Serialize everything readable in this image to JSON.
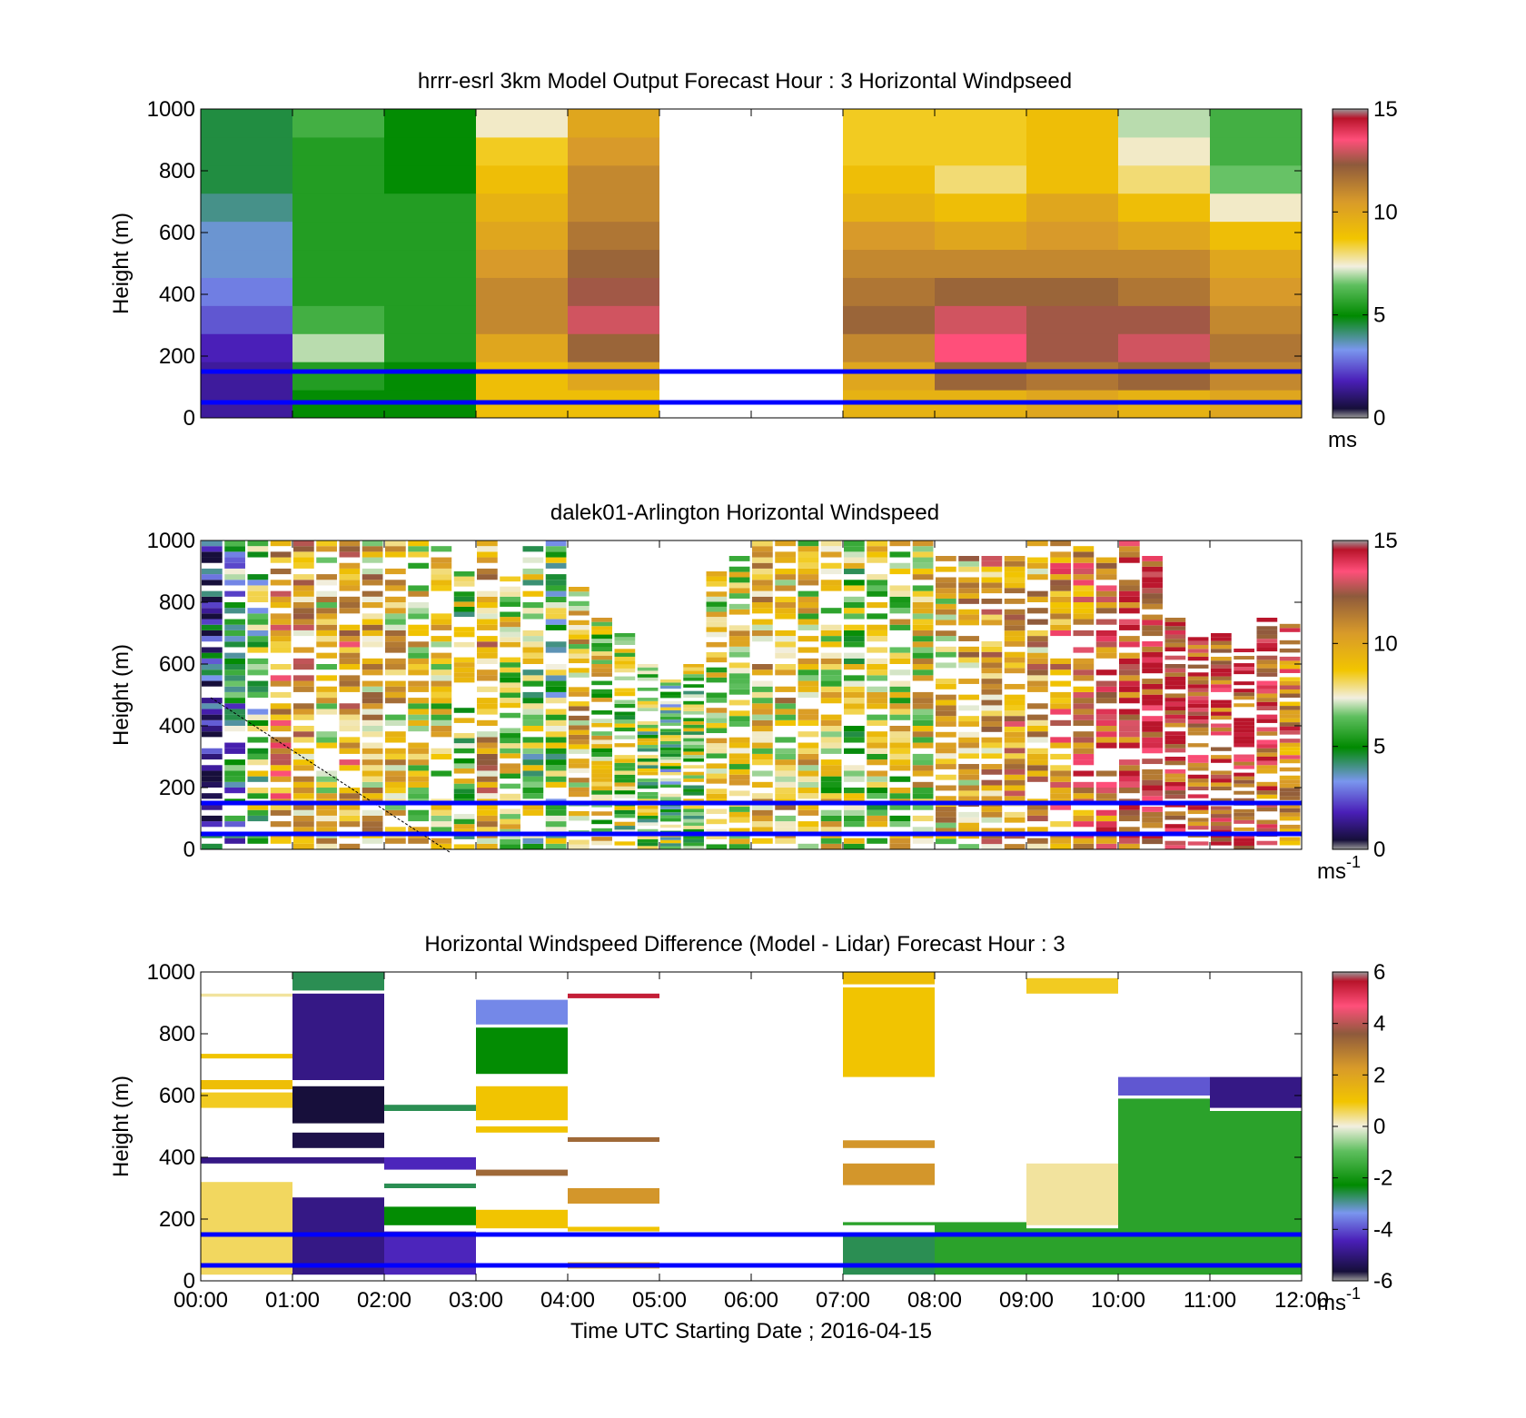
{
  "xaxis": {
    "ticks": [
      "00:00",
      "01:00",
      "02:00",
      "03:00",
      "04:00",
      "05:00",
      "06:00",
      "07:00",
      "08:00",
      "09:00",
      "10:00",
      "11:00",
      "12:00"
    ],
    "label": "Time UTC  Starting Date ; 2016-04-15"
  },
  "chart_data": [
    {
      "type": "heatmap",
      "title": "hrrr-esrl 3km Model Output   Forecast Hour : 3 Horizontal Windpseed",
      "ylabel": "Height (m)",
      "ylim": [
        0,
        1000
      ],
      "yticks": [
        "0",
        "200",
        "400",
        "600",
        "800",
        "1000"
      ],
      "xlim_hours": [
        0,
        12
      ],
      "colorbar": {
        "ticks": [
          "0",
          "5",
          "10",
          "15"
        ],
        "range": [
          0,
          15
        ],
        "unit": "ms",
        "unit_sup": ""
      },
      "reference_lines_m": [
        50,
        150
      ],
      "columns": [
        {
          "hour": 0,
          "values": [
            1.5,
            1.5,
            1.8,
            2.5,
            3.0,
            3.5,
            3.5,
            4.0,
            4.5,
            4.5,
            4.5
          ]
        },
        {
          "hour": 1,
          "values": [
            5.0,
            5.5,
            7.0,
            6.0,
            5.5,
            5.5,
            5.5,
            5.5,
            5.5,
            5.5,
            6.0
          ]
        },
        {
          "hour": 2,
          "values": [
            5.0,
            5.0,
            5.5,
            5.5,
            5.5,
            5.5,
            5.5,
            5.5,
            5.0,
            5.0,
            5.0
          ]
        },
        {
          "hour": 3,
          "values": [
            9.0,
            9.0,
            10.0,
            11.0,
            11.0,
            10.5,
            10.0,
            9.5,
            9.0,
            8.5,
            7.5
          ]
        },
        {
          "hour": 4,
          "values": [
            9.0,
            10.0,
            12.0,
            13.0,
            12.5,
            12.0,
            11.5,
            11.0,
            11.0,
            10.5,
            10.0
          ]
        },
        {
          "hour": 5,
          "values": []
        },
        {
          "hour": 6,
          "values": []
        },
        {
          "hour": 7,
          "values": [
            9.5,
            10.0,
            11.0,
            12.0,
            11.5,
            11.0,
            10.5,
            9.5,
            9.0,
            8.5,
            8.5
          ]
        },
        {
          "hour": 8,
          "values": [
            9.5,
            12.0,
            13.5,
            13.0,
            12.0,
            11.0,
            10.0,
            9.0,
            8.0,
            8.5,
            8.5
          ]
        },
        {
          "hour": 9,
          "values": [
            10.0,
            11.5,
            12.5,
            12.5,
            12.0,
            11.0,
            10.5,
            10.0,
            9.0,
            9.0,
            9.0
          ]
        },
        {
          "hour": 10,
          "values": [
            9.5,
            12.0,
            13.0,
            12.5,
            11.5,
            11.0,
            10.0,
            9.0,
            8.0,
            7.5,
            7.0
          ]
        },
        {
          "hour": 11,
          "values": [
            10.0,
            11.0,
            11.5,
            11.0,
            10.5,
            10.0,
            9.0,
            7.5,
            6.5,
            6.0,
            6.0
          ]
        }
      ]
    },
    {
      "type": "heatmap",
      "title": "dalek01-Arlington  Horizontal Windspeed",
      "ylabel": "Height (m)",
      "ylim": [
        0,
        1000
      ],
      "yticks": [
        "0",
        "200",
        "400",
        "600",
        "800",
        "1000"
      ],
      "xlim_hours": [
        0,
        12
      ],
      "colorbar": {
        "ticks": [
          "0",
          "5",
          "10",
          "15"
        ],
        "range": [
          0,
          15
        ],
        "unit": "ms",
        "unit_sup": "-1"
      },
      "reference_lines_m": [
        50,
        150
      ],
      "profile_interval_min": 15,
      "profiles": [
        {
          "hour": 0.0,
          "top_m": 1000,
          "mean": 2.0
        },
        {
          "hour": 0.25,
          "top_m": 1000,
          "mean": 4.5
        },
        {
          "hour": 0.5,
          "top_m": 1000,
          "mean": 6.0
        },
        {
          "hour": 0.75,
          "top_m": 1000,
          "mean": 11.0
        },
        {
          "hour": 1.0,
          "top_m": 1000,
          "mean": 10.0
        },
        {
          "hour": 1.25,
          "top_m": 1000,
          "mean": 9.0
        },
        {
          "hour": 1.5,
          "top_m": 1000,
          "mean": 10.5
        },
        {
          "hour": 1.75,
          "top_m": 1000,
          "mean": 9.5
        },
        {
          "hour": 2.0,
          "top_m": 1000,
          "mean": 9.0
        },
        {
          "hour": 2.25,
          "top_m": 1000,
          "mean": 8.5
        },
        {
          "hour": 2.5,
          "top_m": 1000,
          "mean": 8.0
        },
        {
          "hour": 2.75,
          "top_m": 900,
          "mean": 7.0
        },
        {
          "hour": 3.0,
          "top_m": 1000,
          "mean": 10.0
        },
        {
          "hour": 3.25,
          "top_m": 900,
          "mean": 8.0
        },
        {
          "hour": 3.5,
          "top_m": 1000,
          "mean": 6.5
        },
        {
          "hour": 3.75,
          "top_m": 1000,
          "mean": 6.0
        },
        {
          "hour": 4.0,
          "top_m": 850,
          "mean": 9.0
        },
        {
          "hour": 4.25,
          "top_m": 750,
          "mean": 8.0
        },
        {
          "hour": 4.5,
          "top_m": 700,
          "mean": 7.0
        },
        {
          "hour": 4.75,
          "top_m": 600,
          "mean": 6.5
        },
        {
          "hour": 5.0,
          "top_m": 550,
          "mean": 6.0
        },
        {
          "hour": 5.25,
          "top_m": 600,
          "mean": 7.0
        },
        {
          "hour": 5.5,
          "top_m": 900,
          "mean": 8.0
        },
        {
          "hour": 5.75,
          "top_m": 950,
          "mean": 8.5
        },
        {
          "hour": 6.0,
          "top_m": 1000,
          "mean": 9.0
        },
        {
          "hour": 6.25,
          "top_m": 1000,
          "mean": 9.0
        },
        {
          "hour": 6.5,
          "top_m": 1000,
          "mean": 8.5
        },
        {
          "hour": 6.75,
          "top_m": 1000,
          "mean": 8.0
        },
        {
          "hour": 7.0,
          "top_m": 1000,
          "mean": 7.0
        },
        {
          "hour": 7.25,
          "top_m": 1000,
          "mean": 7.5
        },
        {
          "hour": 7.5,
          "top_m": 1000,
          "mean": 8.0
        },
        {
          "hour": 7.75,
          "top_m": 1000,
          "mean": 8.5
        },
        {
          "hour": 8.0,
          "top_m": 950,
          "mean": 9.0
        },
        {
          "hour": 8.25,
          "top_m": 950,
          "mean": 9.5
        },
        {
          "hour": 8.5,
          "top_m": 950,
          "mean": 10.0
        },
        {
          "hour": 8.75,
          "top_m": 950,
          "mean": 10.5
        },
        {
          "hour": 9.0,
          "top_m": 1000,
          "mean": 10.0
        },
        {
          "hour": 9.25,
          "top_m": 1000,
          "mean": 11.0
        },
        {
          "hour": 9.5,
          "top_m": 1000,
          "mean": 11.5
        },
        {
          "hour": 9.75,
          "top_m": 1000,
          "mean": 12.0
        },
        {
          "hour": 10.0,
          "top_m": 1000,
          "mean": 13.0
        },
        {
          "hour": 10.25,
          "top_m": 950,
          "mean": 13.5
        },
        {
          "hour": 10.5,
          "top_m": 750,
          "mean": 13.5
        },
        {
          "hour": 10.75,
          "top_m": 700,
          "mean": 13.0
        },
        {
          "hour": 11.0,
          "top_m": 700,
          "mean": 13.0
        },
        {
          "hour": 11.25,
          "top_m": 650,
          "mean": 13.0
        },
        {
          "hour": 11.5,
          "top_m": 750,
          "mean": 12.0
        },
        {
          "hour": 11.75,
          "top_m": 730,
          "mean": 11.5
        }
      ]
    },
    {
      "type": "heatmap",
      "title": "Horizontal Windspeed Difference (Model - Lidar) Forecast Hour : 3",
      "ylabel": "Height (m)",
      "ylim": [
        0,
        1000
      ],
      "yticks": [
        "0",
        "200",
        "400",
        "600",
        "800",
        "1000"
      ],
      "xlim_hours": [
        0,
        12
      ],
      "colorbar": {
        "ticks": [
          "-6",
          "-4",
          "-2",
          "0",
          "2",
          "4",
          "6"
        ],
        "range": [
          -6,
          6
        ],
        "unit": "ms",
        "unit_sup": "-1"
      },
      "reference_lines_m": [
        50,
        150
      ],
      "segments": [
        {
          "hour": 0,
          "from_m": 920,
          "to_m": 930,
          "value": 0.2
        },
        {
          "hour": 0,
          "from_m": 720,
          "to_m": 735,
          "value": 1.0
        },
        {
          "hour": 0,
          "from_m": 620,
          "to_m": 650,
          "value": 1.2
        },
        {
          "hour": 0,
          "from_m": 560,
          "to_m": 610,
          "value": 0.8
        },
        {
          "hour": 0,
          "from_m": 380,
          "to_m": 400,
          "value": -5.0
        },
        {
          "hour": 0,
          "from_m": 20,
          "to_m": 320,
          "value": 0.5
        },
        {
          "hour": 1,
          "from_m": 940,
          "to_m": 1000,
          "value": -2.5
        },
        {
          "hour": 1,
          "from_m": 650,
          "to_m": 930,
          "value": -5.0
        },
        {
          "hour": 1,
          "from_m": 510,
          "to_m": 630,
          "value": -6.0
        },
        {
          "hour": 1,
          "from_m": 430,
          "to_m": 480,
          "value": -5.5
        },
        {
          "hour": 1,
          "from_m": 380,
          "to_m": 400,
          "value": -5.0
        },
        {
          "hour": 1,
          "from_m": 20,
          "to_m": 270,
          "value": -5.0
        },
        {
          "hour": 2,
          "from_m": 550,
          "to_m": 570,
          "value": -2.5
        },
        {
          "hour": 2,
          "from_m": 360,
          "to_m": 400,
          "value": -4.5
        },
        {
          "hour": 2,
          "from_m": 300,
          "to_m": 315,
          "value": -2.5
        },
        {
          "hour": 2,
          "from_m": 180,
          "to_m": 240,
          "value": -2.0
        },
        {
          "hour": 2,
          "from_m": 20,
          "to_m": 160,
          "value": -4.5
        },
        {
          "hour": 3,
          "from_m": 830,
          "to_m": 910,
          "value": -3.5
        },
        {
          "hour": 3,
          "from_m": 670,
          "to_m": 820,
          "value": -2.0
        },
        {
          "hour": 3,
          "from_m": 520,
          "to_m": 630,
          "value": 1.0
        },
        {
          "hour": 3,
          "from_m": 480,
          "to_m": 500,
          "value": 1.0
        },
        {
          "hour": 3,
          "from_m": 340,
          "to_m": 360,
          "value": 3.5
        },
        {
          "hour": 3,
          "from_m": 170,
          "to_m": 230,
          "value": 1.0
        },
        {
          "hour": 4,
          "from_m": 915,
          "to_m": 930,
          "value": 5.5
        },
        {
          "hour": 4,
          "from_m": 450,
          "to_m": 465,
          "value": 3.5
        },
        {
          "hour": 4,
          "from_m": 250,
          "to_m": 300,
          "value": 2.5
        },
        {
          "hour": 4,
          "from_m": 160,
          "to_m": 175,
          "value": 1.0
        },
        {
          "hour": 4,
          "from_m": 40,
          "to_m": 60,
          "value": 2.0
        },
        {
          "hour": 7,
          "from_m": 960,
          "to_m": 1000,
          "value": 1.2
        },
        {
          "hour": 7,
          "from_m": 660,
          "to_m": 950,
          "value": 1.0
        },
        {
          "hour": 7,
          "from_m": 430,
          "to_m": 455,
          "value": 2.5
        },
        {
          "hour": 7,
          "from_m": 310,
          "to_m": 380,
          "value": 2.5
        },
        {
          "hour": 7,
          "from_m": 180,
          "to_m": 190,
          "value": -1.5
        },
        {
          "hour": 7,
          "from_m": 20,
          "to_m": 150,
          "value": -2.5
        },
        {
          "hour": 8,
          "from_m": 20,
          "to_m": 190,
          "value": -1.5
        },
        {
          "hour": 9,
          "from_m": 930,
          "to_m": 980,
          "value": 0.8
        },
        {
          "hour": 9,
          "from_m": 180,
          "to_m": 380,
          "value": 0.2
        },
        {
          "hour": 9,
          "from_m": 20,
          "to_m": 170,
          "value": -1.5
        },
        {
          "hour": 10,
          "from_m": 600,
          "to_m": 660,
          "value": -4.0
        },
        {
          "hour": 10,
          "from_m": 20,
          "to_m": 590,
          "value": -1.5
        },
        {
          "hour": 11,
          "from_m": 560,
          "to_m": 660,
          "value": -5.0
        },
        {
          "hour": 11,
          "from_m": 20,
          "to_m": 550,
          "value": -1.5
        }
      ]
    }
  ]
}
